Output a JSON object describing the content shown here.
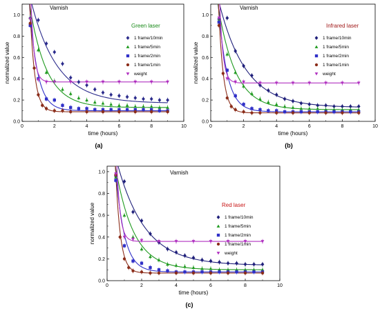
{
  "chart_data": [
    {
      "type": "scatter",
      "panel_caption": "(a)",
      "title": "Varnish",
      "laser_label": "Green laser",
      "laser_color": "#1a8a1a",
      "xlabel": "time (hours)",
      "ylabel": "normalized value",
      "xlim": [
        0,
        10
      ],
      "ylim": [
        0,
        1.1
      ],
      "xticks": [
        "0",
        "2",
        "4",
        "6",
        "8",
        "10"
      ],
      "yticks": [
        "0.0",
        "0.2",
        "0.4",
        "0.6",
        "0.8",
        "1.0"
      ],
      "legend_position": "right",
      "series": [
        {
          "name": "1 frame/10min",
          "color": "#2b2b8c",
          "marker": "diamond",
          "x": [
            0.5,
            1.0,
            1.5,
            2.0,
            2.5,
            3.0,
            3.5,
            4.0,
            4.5,
            5.0,
            5.5,
            6.0,
            6.5,
            7.0,
            7.5,
            8.0,
            8.5,
            9.0
          ],
          "y": [
            0.97,
            0.95,
            0.73,
            0.65,
            0.54,
            0.41,
            0.37,
            0.34,
            0.3,
            0.27,
            0.25,
            0.24,
            0.23,
            0.22,
            0.21,
            0.21,
            0.2,
            0.2
          ],
          "fit": {
            "a": 0.99,
            "k": 0.62,
            "c": 0.17
          }
        },
        {
          "name": "1 frame/5min",
          "color": "#1f9a1f",
          "marker": "triangle",
          "x": [
            0.5,
            1.0,
            1.5,
            2.0,
            2.5,
            3.0,
            3.5,
            4.0,
            4.5,
            5.0,
            5.5,
            6.0,
            6.5,
            7.0,
            7.5,
            8.0,
            8.5,
            9.0
          ],
          "y": [
            0.97,
            0.67,
            0.46,
            0.38,
            0.3,
            0.26,
            0.22,
            0.2,
            0.18,
            0.17,
            0.16,
            0.15,
            0.15,
            0.14,
            0.14,
            0.14,
            0.13,
            0.13
          ],
          "fit": {
            "a": 0.93,
            "k": 0.95,
            "c": 0.13
          }
        },
        {
          "name": "1 frame/2min",
          "color": "#3030c8",
          "marker": "square",
          "x": [
            0.5,
            1.0,
            1.5,
            2.0,
            2.5,
            3.0,
            3.5,
            4.0,
            4.5,
            5.0,
            5.5,
            6.0,
            6.5,
            7.0,
            7.5,
            8.0,
            8.5,
            9.0
          ],
          "y": [
            0.9,
            0.4,
            0.21,
            0.2,
            0.15,
            0.13,
            0.12,
            0.12,
            0.11,
            0.11,
            0.11,
            0.11,
            0.11,
            0.11,
            0.11,
            0.11,
            0.1,
            0.1
          ],
          "fit": {
            "a": 0.91,
            "k": 2.0,
            "c": 0.1
          }
        },
        {
          "name": "1 frame/1min",
          "color": "#8b2d1a",
          "marker": "circle",
          "x": [
            0.5,
            0.75,
            1.0,
            1.25,
            1.5,
            2.0,
            2.5,
            3.0,
            4.0,
            5.0,
            6.0,
            7.0,
            8.0,
            9.0
          ],
          "y": [
            0.92,
            0.5,
            0.25,
            0.15,
            0.12,
            0.1,
            0.1,
            0.09,
            0.09,
            0.09,
            0.09,
            0.09,
            0.09,
            0.09
          ],
          "fit": {
            "a": 0.92,
            "k": 3.4,
            "c": 0.09
          }
        },
        {
          "name": "weight",
          "color": "#b030c0",
          "marker": "triangle-down",
          "x": [
            0.5,
            1.0,
            1.5,
            2.0,
            3.0,
            4.0,
            5.0,
            6.0,
            7.0,
            8.0,
            9.0
          ],
          "y": [
            0.96,
            0.39,
            0.37,
            0.37,
            0.37,
            0.37,
            0.37,
            0.37,
            0.37,
            0.37,
            0.37
          ],
          "fit": {
            "a": 0.95,
            "k": 5.0,
            "c": 0.37
          }
        }
      ]
    },
    {
      "type": "scatter",
      "panel_caption": "(b)",
      "title": "Varnish",
      "laser_label": "Infrared laser",
      "laser_color": "#a01818",
      "xlabel": "time (hours)",
      "ylabel": "normalized value",
      "xlim": [
        0,
        10
      ],
      "ylim": [
        0,
        1.1
      ],
      "xticks": [
        "0",
        "2",
        "4",
        "6",
        "8",
        "10"
      ],
      "yticks": [
        "0.0",
        "0.2",
        "0.4",
        "0.6",
        "0.8",
        "1.0"
      ],
      "legend_position": "right",
      "series": [
        {
          "name": "1 frame/10min",
          "color": "#1f1f7a",
          "marker": "diamond",
          "x": [
            0.5,
            1.0,
            1.5,
            2.0,
            2.5,
            3.0,
            3.5,
            4.0,
            4.5,
            5.0,
            5.5,
            6.0,
            6.5,
            7.0,
            7.5,
            8.0,
            8.5,
            9.0
          ],
          "y": [
            0.96,
            0.97,
            0.66,
            0.52,
            0.43,
            0.34,
            0.29,
            0.25,
            0.21,
            0.19,
            0.17,
            0.16,
            0.15,
            0.15,
            0.14,
            0.14,
            0.14,
            0.14
          ],
          "fit": {
            "a": 0.99,
            "k": 0.62,
            "c": 0.13
          }
        },
        {
          "name": "1 frame/5min",
          "color": "#1f9a1f",
          "marker": "triangle",
          "x": [
            0.5,
            1.0,
            1.5,
            2.0,
            2.5,
            3.0,
            3.5,
            4.0,
            4.5,
            5.0,
            5.5,
            6.0,
            6.5,
            7.0,
            7.5,
            8.0,
            8.5,
            9.0
          ],
          "y": [
            0.95,
            0.63,
            0.46,
            0.33,
            0.26,
            0.21,
            0.18,
            0.16,
            0.14,
            0.13,
            0.12,
            0.12,
            0.12,
            0.11,
            0.11,
            0.11,
            0.11,
            0.11
          ],
          "fit": {
            "a": 0.93,
            "k": 0.95,
            "c": 0.11
          }
        },
        {
          "name": "1 frame/2min",
          "color": "#3030c8",
          "marker": "square",
          "x": [
            0.5,
            1.0,
            1.5,
            2.0,
            2.5,
            3.0,
            3.5,
            4.0,
            4.5,
            5.0,
            5.5,
            6.0,
            6.5,
            7.0,
            7.5,
            8.0,
            8.5,
            9.0
          ],
          "y": [
            0.93,
            0.48,
            0.24,
            0.16,
            0.12,
            0.11,
            0.1,
            0.1,
            0.09,
            0.09,
            0.09,
            0.09,
            0.09,
            0.09,
            0.09,
            0.09,
            0.09,
            0.09
          ],
          "fit": {
            "a": 0.93,
            "k": 1.9,
            "c": 0.09
          }
        },
        {
          "name": "1 frame/1min",
          "color": "#8b2d1a",
          "marker": "circle",
          "x": [
            0.5,
            0.75,
            1.0,
            1.25,
            1.5,
            2.0,
            2.5,
            3.0,
            4.0,
            5.0,
            6.0,
            7.0,
            8.0,
            9.0
          ],
          "y": [
            0.9,
            0.45,
            0.22,
            0.14,
            0.11,
            0.09,
            0.08,
            0.08,
            0.08,
            0.08,
            0.08,
            0.08,
            0.08,
            0.08
          ],
          "fit": {
            "a": 0.92,
            "k": 3.5,
            "c": 0.08
          }
        },
        {
          "name": "weight",
          "color": "#b030c0",
          "marker": "triangle-down",
          "x": [
            0.5,
            1.0,
            1.5,
            2.0,
            3.0,
            4.0,
            5.0,
            6.0,
            7.0,
            8.0,
            9.0
          ],
          "y": [
            0.97,
            0.4,
            0.37,
            0.37,
            0.36,
            0.36,
            0.36,
            0.36,
            0.36,
            0.36,
            0.36
          ],
          "fit": {
            "a": 0.95,
            "k": 5.0,
            "c": 0.36
          }
        }
      ]
    },
    {
      "type": "scatter",
      "panel_caption": "(c)",
      "title": "Varnish",
      "laser_label": "Red laser",
      "laser_color": "#c81414",
      "xlabel": "time (hours)",
      "ylabel": "normalized value",
      "xlim": [
        0,
        10
      ],
      "ylim": [
        0,
        1.05
      ],
      "xticks": [
        "0",
        "2",
        "4",
        "6",
        "8",
        "10"
      ],
      "yticks": [
        "0.0",
        "0.2",
        "0.4",
        "0.6",
        "0.8",
        "1.0"
      ],
      "legend_position": "right",
      "series": [
        {
          "name": "1 frame/10min",
          "color": "#1f1f7a",
          "marker": "diamond",
          "x": [
            0.5,
            1.0,
            1.5,
            2.0,
            2.5,
            3.0,
            3.5,
            4.0,
            4.5,
            5.0,
            5.5,
            6.0,
            6.5,
            7.0,
            7.5,
            8.0,
            8.5,
            9.0
          ],
          "y": [
            0.96,
            0.91,
            0.63,
            0.55,
            0.43,
            0.35,
            0.29,
            0.26,
            0.23,
            0.21,
            0.19,
            0.18,
            0.17,
            0.16,
            0.16,
            0.15,
            0.15,
            0.15
          ],
          "fit": {
            "a": 0.99,
            "k": 0.62,
            "c": 0.14
          }
        },
        {
          "name": "1 frame/5min",
          "color": "#1f9a1f",
          "marker": "triangle",
          "x": [
            0.5,
            1.0,
            1.5,
            2.0,
            2.5,
            3.0,
            3.5,
            4.0,
            4.5,
            5.0,
            5.5,
            6.0,
            6.5,
            7.0,
            7.5,
            8.0,
            8.5,
            9.0
          ],
          "y": [
            0.95,
            0.6,
            0.4,
            0.29,
            0.22,
            0.19,
            0.15,
            0.14,
            0.13,
            0.12,
            0.11,
            0.11,
            0.1,
            0.1,
            0.1,
            0.1,
            0.1,
            0.1
          ],
          "fit": {
            "a": 0.93,
            "k": 0.95,
            "c": 0.1
          }
        },
        {
          "name": "1 frame/2min",
          "color": "#3030c8",
          "marker": "square",
          "x": [
            0.5,
            1.0,
            1.5,
            2.0,
            2.5,
            3.0,
            3.5,
            4.0,
            4.5,
            5.0,
            5.5,
            6.0,
            6.5,
            7.0,
            7.5,
            8.0,
            8.5,
            9.0
          ],
          "y": [
            0.92,
            0.32,
            0.18,
            0.16,
            0.12,
            0.1,
            0.09,
            0.08,
            0.08,
            0.08,
            0.08,
            0.08,
            0.08,
            0.08,
            0.08,
            0.08,
            0.08,
            0.08
          ],
          "fit": {
            "a": 0.93,
            "k": 2.0,
            "c": 0.08
          }
        },
        {
          "name": "1 frame/1min",
          "color": "#8b2d1a",
          "marker": "circle",
          "x": [
            0.5,
            0.75,
            1.0,
            1.25,
            1.5,
            2.0,
            2.5,
            3.0,
            4.0,
            5.0,
            6.0,
            7.0,
            8.0,
            9.0
          ],
          "y": [
            0.97,
            0.4,
            0.2,
            0.12,
            0.09,
            0.08,
            0.07,
            0.07,
            0.07,
            0.07,
            0.07,
            0.07,
            0.07,
            0.07
          ],
          "fit": {
            "a": 0.93,
            "k": 3.6,
            "c": 0.07
          }
        },
        {
          "name": "weight",
          "color": "#b030c0",
          "marker": "triangle-down",
          "x": [
            0.5,
            1.0,
            1.5,
            2.0,
            3.0,
            4.0,
            5.0,
            6.0,
            7.0,
            8.0,
            9.0
          ],
          "y": [
            0.98,
            0.4,
            0.38,
            0.37,
            0.36,
            0.36,
            0.36,
            0.36,
            0.36,
            0.36,
            0.36
          ],
          "fit": {
            "a": 0.96,
            "k": 5.0,
            "c": 0.36
          }
        }
      ]
    }
  ]
}
